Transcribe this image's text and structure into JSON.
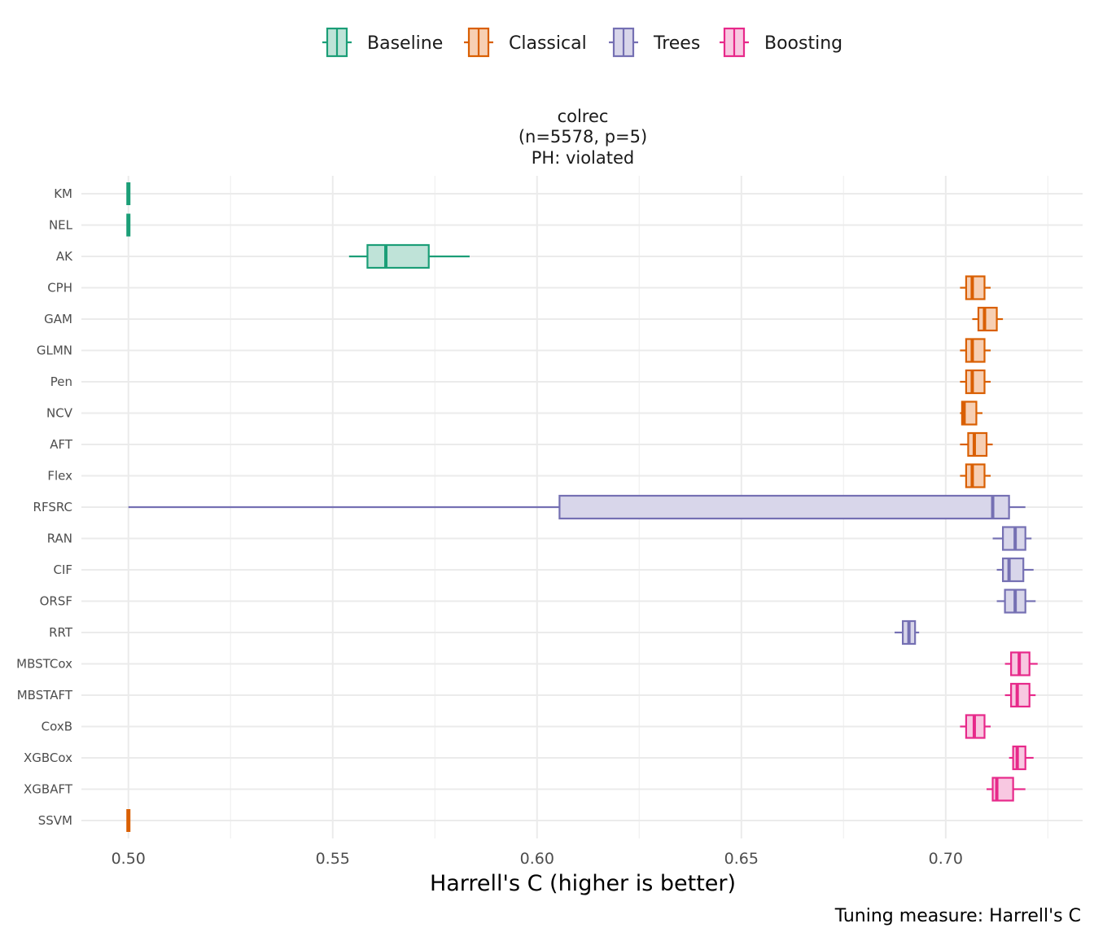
{
  "chart_data": {
    "type": "boxplot",
    "orientation": "horizontal",
    "title_lines": [
      "colrec",
      "(n=5578, p=5)",
      "PH: violated"
    ],
    "xlabel": "Harrell's C (higher is better)",
    "ylabel": "",
    "caption": "Tuning measure: Harrell's C",
    "xlim": [
      0.4885,
      0.7335
    ],
    "x_ticks": [
      0.5,
      0.55,
      0.6,
      0.65,
      0.7
    ],
    "x_tick_labels": [
      "0.50",
      "0.55",
      "0.60",
      "0.65",
      "0.70"
    ],
    "grid": true,
    "legend_position": "top",
    "groups": [
      {
        "name": "Baseline",
        "color": "#1b9e77",
        "fill": "#bfe3d8"
      },
      {
        "name": "Classical",
        "color": "#d95f02",
        "fill": "#f7cfb3"
      },
      {
        "name": "Trees",
        "color": "#7570b3",
        "fill": "#d8d6ea"
      },
      {
        "name": "Boosting",
        "color": "#e7298a",
        "fill": "#f8c8e1"
      }
    ],
    "series": [
      {
        "name": "KM",
        "group": "Baseline",
        "min": 0.5,
        "q1": 0.5,
        "median": 0.5,
        "q3": 0.5,
        "max": 0.5
      },
      {
        "name": "NEL",
        "group": "Baseline",
        "min": 0.5,
        "q1": 0.5,
        "median": 0.5,
        "q3": 0.5,
        "max": 0.5
      },
      {
        "name": "AK",
        "group": "Baseline",
        "min": 0.554,
        "q1": 0.5585,
        "median": 0.563,
        "q3": 0.5735,
        "max": 0.5835
      },
      {
        "name": "CPH",
        "group": "Classical",
        "min": 0.7035,
        "q1": 0.705,
        "median": 0.7065,
        "q3": 0.7095,
        "max": 0.711
      },
      {
        "name": "GAM",
        "group": "Classical",
        "min": 0.7065,
        "q1": 0.708,
        "median": 0.7095,
        "q3": 0.7125,
        "max": 0.714
      },
      {
        "name": "GLMN",
        "group": "Classical",
        "min": 0.7035,
        "q1": 0.705,
        "median": 0.7065,
        "q3": 0.7095,
        "max": 0.711
      },
      {
        "name": "Pen",
        "group": "Classical",
        "min": 0.7035,
        "q1": 0.705,
        "median": 0.7065,
        "q3": 0.7095,
        "max": 0.711
      },
      {
        "name": "NCV",
        "group": "Classical",
        "min": 0.7035,
        "q1": 0.704,
        "median": 0.7045,
        "q3": 0.7075,
        "max": 0.709
      },
      {
        "name": "AFT",
        "group": "Classical",
        "min": 0.7035,
        "q1": 0.7055,
        "median": 0.707,
        "q3": 0.71,
        "max": 0.7115
      },
      {
        "name": "Flex",
        "group": "Classical",
        "min": 0.7035,
        "q1": 0.705,
        "median": 0.7065,
        "q3": 0.7095,
        "max": 0.711
      },
      {
        "name": "RFSRC",
        "group": "Trees",
        "min": 0.5,
        "q1": 0.6055,
        "median": 0.7115,
        "q3": 0.7155,
        "max": 0.7195
      },
      {
        "name": "RAN",
        "group": "Trees",
        "min": 0.7115,
        "q1": 0.714,
        "median": 0.717,
        "q3": 0.7195,
        "max": 0.721
      },
      {
        "name": "CIF",
        "group": "Trees",
        "min": 0.7125,
        "q1": 0.714,
        "median": 0.7155,
        "q3": 0.719,
        "max": 0.7215
      },
      {
        "name": "ORSF",
        "group": "Trees",
        "min": 0.7125,
        "q1": 0.7145,
        "median": 0.717,
        "q3": 0.7195,
        "max": 0.722
      },
      {
        "name": "RRT",
        "group": "Trees",
        "min": 0.6875,
        "q1": 0.6895,
        "median": 0.691,
        "q3": 0.6925,
        "max": 0.6935
      },
      {
        "name": "MBSTCox",
        "group": "Boosting",
        "min": 0.7145,
        "q1": 0.716,
        "median": 0.718,
        "q3": 0.7205,
        "max": 0.7225
      },
      {
        "name": "MBSTAFT",
        "group": "Boosting",
        "min": 0.7145,
        "q1": 0.716,
        "median": 0.7175,
        "q3": 0.7205,
        "max": 0.722
      },
      {
        "name": "CoxB",
        "group": "Boosting",
        "min": 0.7035,
        "q1": 0.705,
        "median": 0.707,
        "q3": 0.7095,
        "max": 0.711
      },
      {
        "name": "XGBCox",
        "group": "Boosting",
        "min": 0.7155,
        "q1": 0.7165,
        "median": 0.7175,
        "q3": 0.7195,
        "max": 0.7215
      },
      {
        "name": "XGBAFT",
        "group": "Boosting",
        "min": 0.71,
        "q1": 0.7115,
        "median": 0.7125,
        "q3": 0.7165,
        "max": 0.7195
      },
      {
        "name": "SSVM",
        "group": "Classical",
        "min": 0.5,
        "q1": 0.5,
        "median": 0.5,
        "q3": 0.5,
        "max": 0.5
      }
    ]
  }
}
